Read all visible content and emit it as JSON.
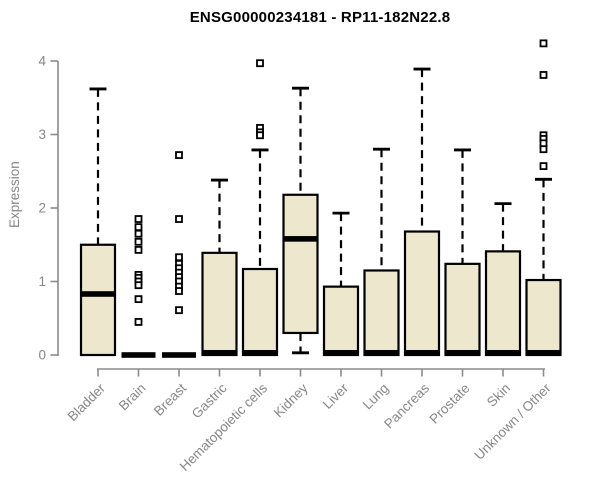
{
  "page": {
    "background": "#ffffff"
  },
  "chart_data": {
    "type": "boxplot",
    "title": "ENSG00000234181 - RP11-182N22.8",
    "ylabel": "Expression",
    "xlabel": "",
    "ylim": [
      0,
      4
    ],
    "yticks": [
      0,
      1,
      2,
      3,
      4
    ],
    "grid": false,
    "legend": false,
    "categories": [
      "Bladder",
      "Brain",
      "Breast",
      "Gastric",
      "Hematopoietic cells",
      "Kidney",
      "Liver",
      "Lung",
      "Pancreas",
      "Prostate",
      "Skin",
      "Unknown / Other"
    ],
    "boxes": [
      {
        "category": "Bladder",
        "whisker_low": 0.0,
        "q1": 0.0,
        "median": 0.83,
        "q3": 1.5,
        "whisker_high": 3.62,
        "outliers": []
      },
      {
        "category": "Brain",
        "whisker_low": 0.0,
        "q1": 0.0,
        "median": 0.0,
        "q3": 0.0,
        "whisker_high": 0.0,
        "outliers": [
          1.85,
          1.74,
          1.65,
          1.54,
          1.43,
          1.09,
          1.05,
          1.0,
          0.95,
          0.76,
          0.45
        ]
      },
      {
        "category": "Breast",
        "whisker_low": 0.0,
        "q1": 0.0,
        "median": 0.0,
        "q3": 0.0,
        "whisker_high": 0.0,
        "outliers": [
          2.72,
          1.85,
          1.33,
          1.24,
          1.18,
          1.12,
          1.06,
          1.0,
          0.93,
          0.87,
          0.61
        ]
      },
      {
        "category": "Gastric",
        "whisker_low": 0.0,
        "q1": 0.0,
        "median": 0.03,
        "q3": 1.39,
        "whisker_high": 2.38,
        "outliers": []
      },
      {
        "category": "Hematopoietic cells",
        "whisker_low": 0.0,
        "q1": 0.0,
        "median": 0.03,
        "q3": 1.17,
        "whisker_high": 2.79,
        "outliers": [
          3.97,
          3.09,
          3.03,
          2.99
        ]
      },
      {
        "category": "Kidney",
        "whisker_low": 0.03,
        "q1": 0.3,
        "median": 1.58,
        "q3": 2.18,
        "whisker_high": 3.63,
        "outliers": []
      },
      {
        "category": "Liver",
        "whisker_low": 0.0,
        "q1": 0.0,
        "median": 0.03,
        "q3": 0.93,
        "whisker_high": 1.93,
        "outliers": []
      },
      {
        "category": "Lung",
        "whisker_low": 0.0,
        "q1": 0.0,
        "median": 0.03,
        "q3": 1.15,
        "whisker_high": 2.8,
        "outliers": []
      },
      {
        "category": "Pancreas",
        "whisker_low": 0.0,
        "q1": 0.0,
        "median": 0.03,
        "q3": 1.68,
        "whisker_high": 3.89,
        "outliers": []
      },
      {
        "category": "Prostate",
        "whisker_low": 0.0,
        "q1": 0.0,
        "median": 0.03,
        "q3": 1.24,
        "whisker_high": 2.79,
        "outliers": []
      },
      {
        "category": "Skin",
        "whisker_low": 0.0,
        "q1": 0.0,
        "median": 0.03,
        "q3": 1.41,
        "whisker_high": 2.06,
        "outliers": []
      },
      {
        "category": "Unknown / Other",
        "whisker_low": 0.0,
        "q1": 0.0,
        "median": 0.03,
        "q3": 1.02,
        "whisker_high": 2.39,
        "outliers": [
          4.24,
          3.81,
          2.99,
          2.94,
          2.88,
          2.8,
          2.57
        ]
      }
    ],
    "styles": {
      "box_fill": "#ece7cd",
      "box_stroke": "#000000",
      "median_color": "#000000",
      "whisker_color": "#000000",
      "outlier_fill": "#ffffff",
      "outlier_stroke": "#000000",
      "axis_color": "#8b8b8b",
      "tick_label_color": "#878787",
      "title_color": "#000000"
    }
  }
}
